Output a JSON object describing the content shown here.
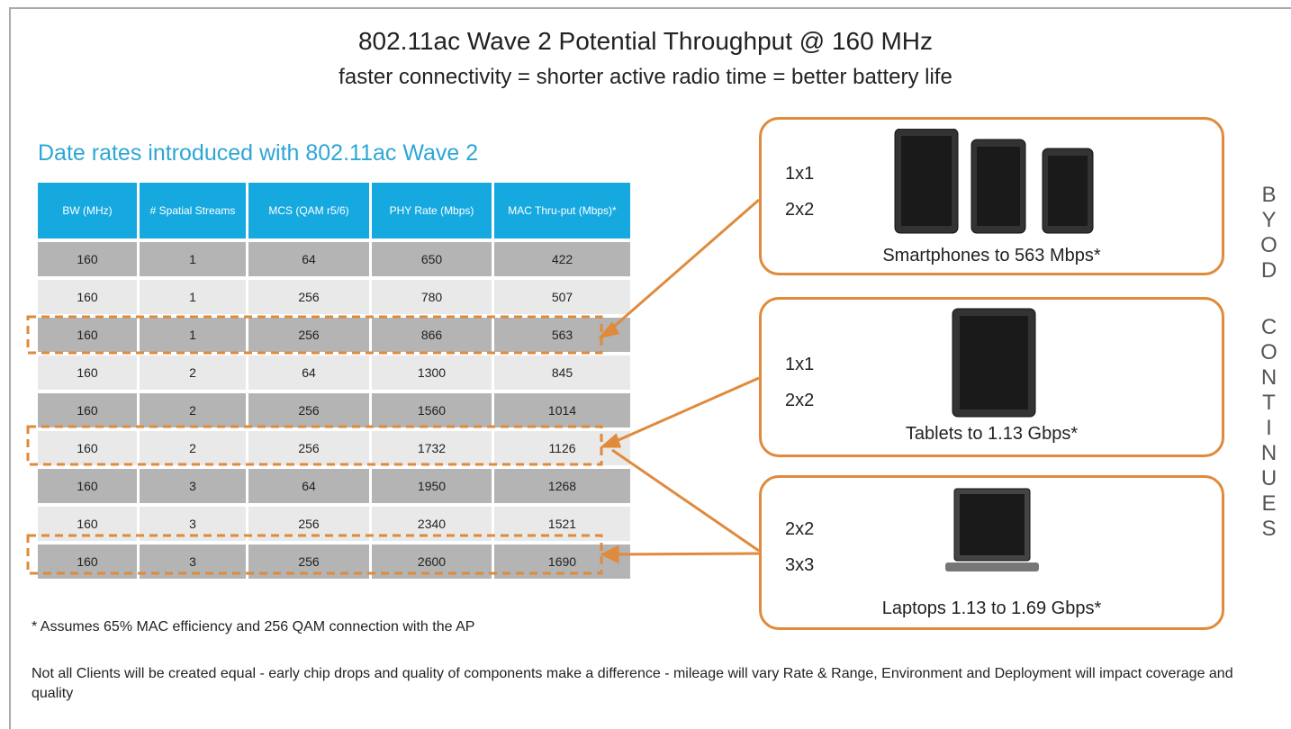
{
  "header": {
    "title": "802.11ac Wave 2 Potential Throughput @ 160 MHz",
    "subtitle": "faster connectivity = shorter active radio time = better battery life"
  },
  "table": {
    "caption": "Date rates introduced with 802.11ac Wave 2",
    "columns": [
      "BW (MHz)",
      "# Spatial Streams",
      "MCS (QAM r5/6)",
      "PHY Rate (Mbps)",
      "MAC Thru-put (Mbps)*"
    ],
    "rows": [
      [
        "160",
        "1",
        "64",
        "650",
        "422"
      ],
      [
        "160",
        "1",
        "256",
        "780",
        "507"
      ],
      [
        "160",
        "1",
        "256",
        "866",
        "563"
      ],
      [
        "160",
        "2",
        "64",
        "1300",
        "845"
      ],
      [
        "160",
        "2",
        "256",
        "1560",
        "1014"
      ],
      [
        "160",
        "2",
        "256",
        "1732",
        "1126"
      ],
      [
        "160",
        "3",
        "64",
        "1950",
        "1268"
      ],
      [
        "160",
        "3",
        "256",
        "2340",
        "1521"
      ],
      [
        "160",
        "3",
        "256",
        "2600",
        "1690"
      ]
    ]
  },
  "devices": [
    {
      "streams": [
        "1x1",
        "2x2"
      ],
      "label": "Smartphones to 563 Mbps*"
    },
    {
      "streams": [
        "1x1",
        "2x2"
      ],
      "label": "Tablets to 1.13 Gbps*"
    },
    {
      "streams": [
        "2x2",
        "3x3"
      ],
      "label": "Laptops 1.13 to 1.69 Gbps*"
    }
  ],
  "side_text": [
    "BYOD",
    "CONTINUES"
  ],
  "footnote": "* Assumes 65% MAC efficiency and 256 QAM connection with the AP",
  "note": "Not all Clients will be created equal - early chip drops and quality of components make a difference - mileage will vary Rate & Range, Environment and Deployment will impact coverage and quality"
}
